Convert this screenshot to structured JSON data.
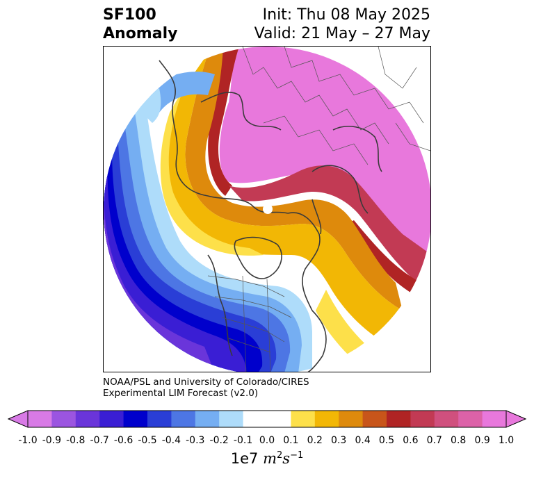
{
  "header": {
    "title_line1": "SF100",
    "title_line2": "Anomaly",
    "init": "Init: Thu 08 May 2025",
    "valid": "Valid: 21 May – 27 May"
  },
  "credit": {
    "line1": "NOAA/PSL and University of Colorado/CIRES",
    "line2": "Experimental LIM Forecast (v2.0)"
  },
  "colorbar": {
    "ticks": [
      "-1.0",
      "-0.9",
      "-0.8",
      "-0.7",
      "-0.6",
      "-0.5",
      "-0.4",
      "-0.3",
      "-0.2",
      "-0.1",
      "0.0",
      "0.1",
      "0.2",
      "0.3",
      "0.4",
      "0.5",
      "0.6",
      "0.7",
      "0.8",
      "0.9",
      "1.0"
    ],
    "colors": [
      "#d87ae6",
      "#9b55e0",
      "#6a35da",
      "#3a1ed4",
      "#0000cc",
      "#2a3ed6",
      "#4d76e4",
      "#75aef2",
      "#aedcfa",
      "#ffffff",
      "#ffffff",
      "#fde04a",
      "#f2b705",
      "#de8a0c",
      "#c8551a",
      "#b02424",
      "#c23a54",
      "#d0507e",
      "#dc62a8",
      "#e878dc"
    ],
    "underflow_color": "#d87ae6",
    "overflow_color": "#e878dc",
    "units_prefix": "1e7 ",
    "units_var": "m",
    "units_exp1": "2",
    "units_var2": "s",
    "units_exp2": "−1"
  }
}
